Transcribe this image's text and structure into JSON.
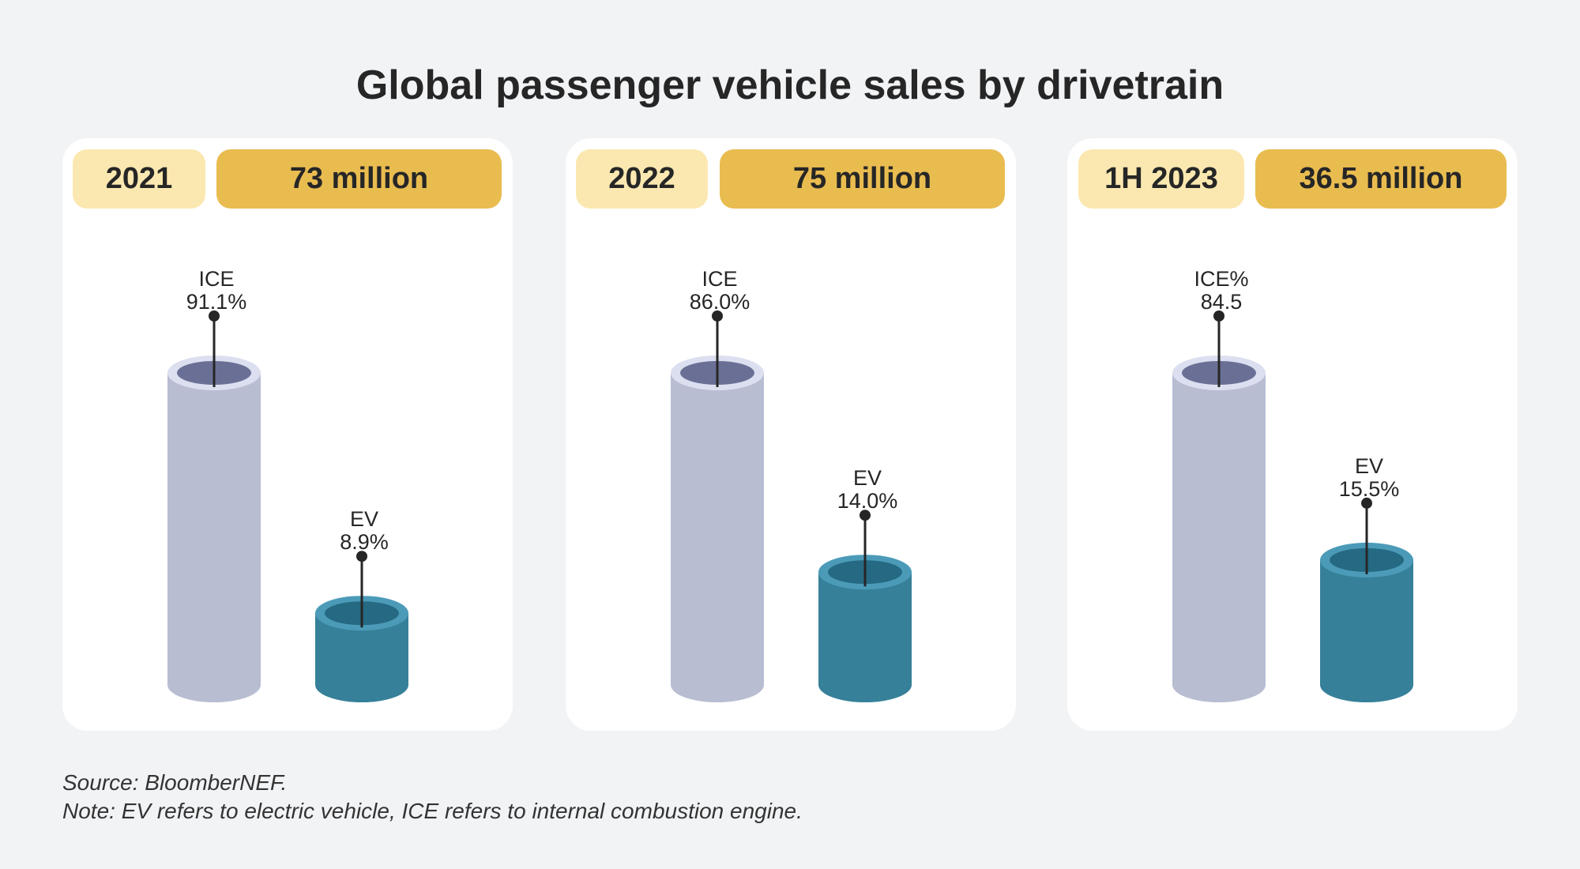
{
  "title": "Global passenger vehicle sales by drivetrain",
  "chart_data": [
    {
      "type": "bar",
      "period": "2021",
      "total": "73 million",
      "categories": [
        "ICE",
        "EV"
      ],
      "labels": [
        "ICE",
        "EV"
      ],
      "value_labels": [
        "91.1%",
        "8.9%"
      ],
      "values": [
        91.1,
        8.9
      ]
    },
    {
      "type": "bar",
      "period": "2022",
      "total": "75 million",
      "categories": [
        "ICE",
        "EV"
      ],
      "labels": [
        "ICE",
        "EV"
      ],
      "value_labels": [
        "86.0%",
        "14.0%"
      ],
      "values": [
        86.0,
        14.0
      ]
    },
    {
      "type": "bar",
      "period": "1H 2023",
      "total": "36.5 million",
      "categories": [
        "ICE",
        "EV"
      ],
      "labels": [
        "ICE%",
        "EV"
      ],
      "value_labels": [
        "84.5",
        "15.5%"
      ],
      "values": [
        84.5,
        15.5
      ]
    }
  ],
  "colors": {
    "ICE": {
      "body": "#b8bdd2",
      "rim": "#dcdff0",
      "inner": "#6a7095"
    },
    "EV": {
      "body": "#368099",
      "rim": "#4b9bb8",
      "inner": "#256983"
    },
    "year_pill": "#fbe8b0",
    "total_pill": "#e9bc50"
  },
  "footer": {
    "source": "Source: BloomberNEF.",
    "note": "Note: EV refers to electric vehicle, ICE refers to internal combustion engine."
  }
}
